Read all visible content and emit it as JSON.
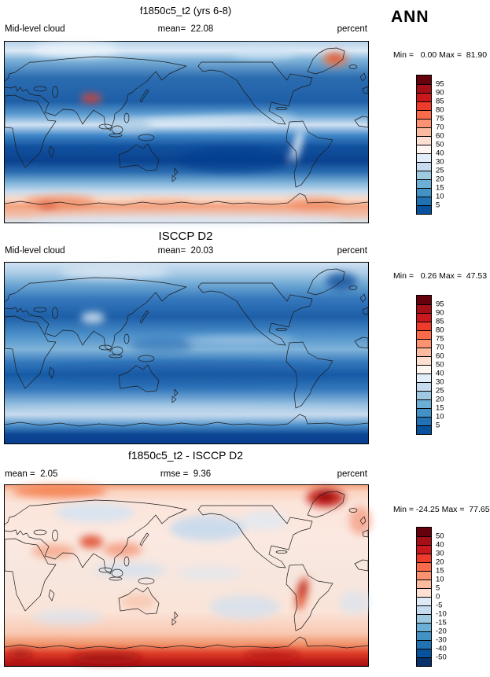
{
  "season": "ANN",
  "panels": [
    {
      "title": "f1850c5_t2 (yrs 6-8)",
      "header": {
        "left": "Mid-level cloud",
        "center": "mean=  22.08",
        "right": "percent"
      },
      "minmax": "Min =   0.00 Max =  81.90",
      "colorbar": {
        "labels": [
          "95",
          "90",
          "85",
          "80",
          "75",
          "70",
          "60",
          "50",
          "40",
          "30",
          "25",
          "20",
          "15",
          "10",
          "5"
        ],
        "colors": [
          "#67000d",
          "#a50f15",
          "#cb181d",
          "#ef3b2c",
          "#fb6a4a",
          "#fc9272",
          "#fcbba1",
          "#fee0d2",
          "#fff5f0",
          "#e1edf8",
          "#c6dbef",
          "#9ecae1",
          "#6baed6",
          "#4292c6",
          "#2171b5",
          "#08519c"
        ]
      }
    },
    {
      "title": "ISCCP D2",
      "header": {
        "left": "Mid-level cloud",
        "center": "mean=  20.03",
        "right": "percent"
      },
      "minmax": "Min =   0.26 Max =  47.53",
      "colorbar": {
        "labels": [
          "95",
          "90",
          "85",
          "80",
          "75",
          "70",
          "60",
          "50",
          "40",
          "30",
          "25",
          "20",
          "15",
          "10",
          "5"
        ],
        "colors": [
          "#67000d",
          "#a50f15",
          "#cb181d",
          "#ef3b2c",
          "#fb6a4a",
          "#fc9272",
          "#fcbba1",
          "#fee0d2",
          "#fff5f0",
          "#e1edf8",
          "#c6dbef",
          "#9ecae1",
          "#6baed6",
          "#4292c6",
          "#2171b5",
          "#08519c"
        ]
      }
    },
    {
      "title": "f1850c5_t2 - ISCCP D2",
      "header": {
        "left": "mean =  2.05",
        "center": "rmse =  9.36",
        "right": "percent"
      },
      "minmax": "Min = -24.25 Max =  77.65",
      "colorbar": {
        "labels": [
          "50",
          "40",
          "30",
          "20",
          "15",
          "10",
          "5",
          "0",
          "-5",
          "-10",
          "-15",
          "-20",
          "-30",
          "-40",
          "-50"
        ],
        "colors": [
          "#67000d",
          "#a50f15",
          "#cb181d",
          "#ef3b2c",
          "#fb6a4a",
          "#fc9272",
          "#fcbba1",
          "#fee0d2",
          "#deebf7",
          "#c6dbef",
          "#9ecae1",
          "#6baed6",
          "#4292c6",
          "#2171b5",
          "#08519c",
          "#08306b"
        ]
      }
    }
  ],
  "chart_data": [
    {
      "type": "heatmap",
      "title": "f1850c5_t2 (yrs 6-8)",
      "variable": "Mid-level cloud",
      "season": "ANN",
      "units": "percent",
      "projection": "global latitude-longitude filled-contour map",
      "stats": {
        "mean": 22.08,
        "min": 0.0,
        "max": 81.9
      },
      "contour_levels": [
        5,
        10,
        15,
        20,
        25,
        30,
        40,
        50,
        60,
        70,
        75,
        80,
        85,
        90,
        95
      ],
      "palette_top_to_bottom": [
        "#67000d",
        "#a50f15",
        "#cb181d",
        "#ef3b2c",
        "#fb6a4a",
        "#fc9272",
        "#fcbba1",
        "#fee0d2",
        "#fff5f0",
        "#e1edf8",
        "#c6dbef",
        "#9ecae1",
        "#6baed6",
        "#4292c6",
        "#2171b5",
        "#08519c"
      ],
      "legend_position": "right vertical colorbar"
    },
    {
      "type": "heatmap",
      "title": "ISCCP D2",
      "variable": "Mid-level cloud",
      "season": "ANN",
      "units": "percent",
      "projection": "global latitude-longitude filled-contour map",
      "stats": {
        "mean": 20.03,
        "min": 0.26,
        "max": 47.53
      },
      "contour_levels": [
        5,
        10,
        15,
        20,
        25,
        30,
        40,
        50,
        60,
        70,
        75,
        80,
        85,
        90,
        95
      ],
      "palette_top_to_bottom": [
        "#67000d",
        "#a50f15",
        "#cb181d",
        "#ef3b2c",
        "#fb6a4a",
        "#fc9272",
        "#fcbba1",
        "#fee0d2",
        "#fff5f0",
        "#e1edf8",
        "#c6dbef",
        "#9ecae1",
        "#6baed6",
        "#4292c6",
        "#2171b5",
        "#08519c"
      ],
      "legend_position": "right vertical colorbar"
    },
    {
      "type": "heatmap",
      "title": "f1850c5_t2 - ISCCP D2",
      "variable": "Mid-level cloud",
      "season": "ANN",
      "units": "percent",
      "projection": "global latitude-longitude filled-contour map",
      "stats": {
        "mean": 2.05,
        "rmse": 9.36,
        "min": -24.25,
        "max": 77.65
      },
      "contour_levels": [
        -50,
        -40,
        -30,
        -20,
        -15,
        -10,
        -5,
        0,
        5,
        10,
        15,
        20,
        30,
        40,
        50
      ],
      "palette_top_to_bottom": [
        "#67000d",
        "#a50f15",
        "#cb181d",
        "#ef3b2c",
        "#fb6a4a",
        "#fc9272",
        "#fcbba1",
        "#fee0d2",
        "#deebf7",
        "#c6dbef",
        "#9ecae1",
        "#6baed6",
        "#4292c6",
        "#2171b5",
        "#08519c",
        "#08306b"
      ],
      "legend_position": "right vertical colorbar"
    }
  ]
}
